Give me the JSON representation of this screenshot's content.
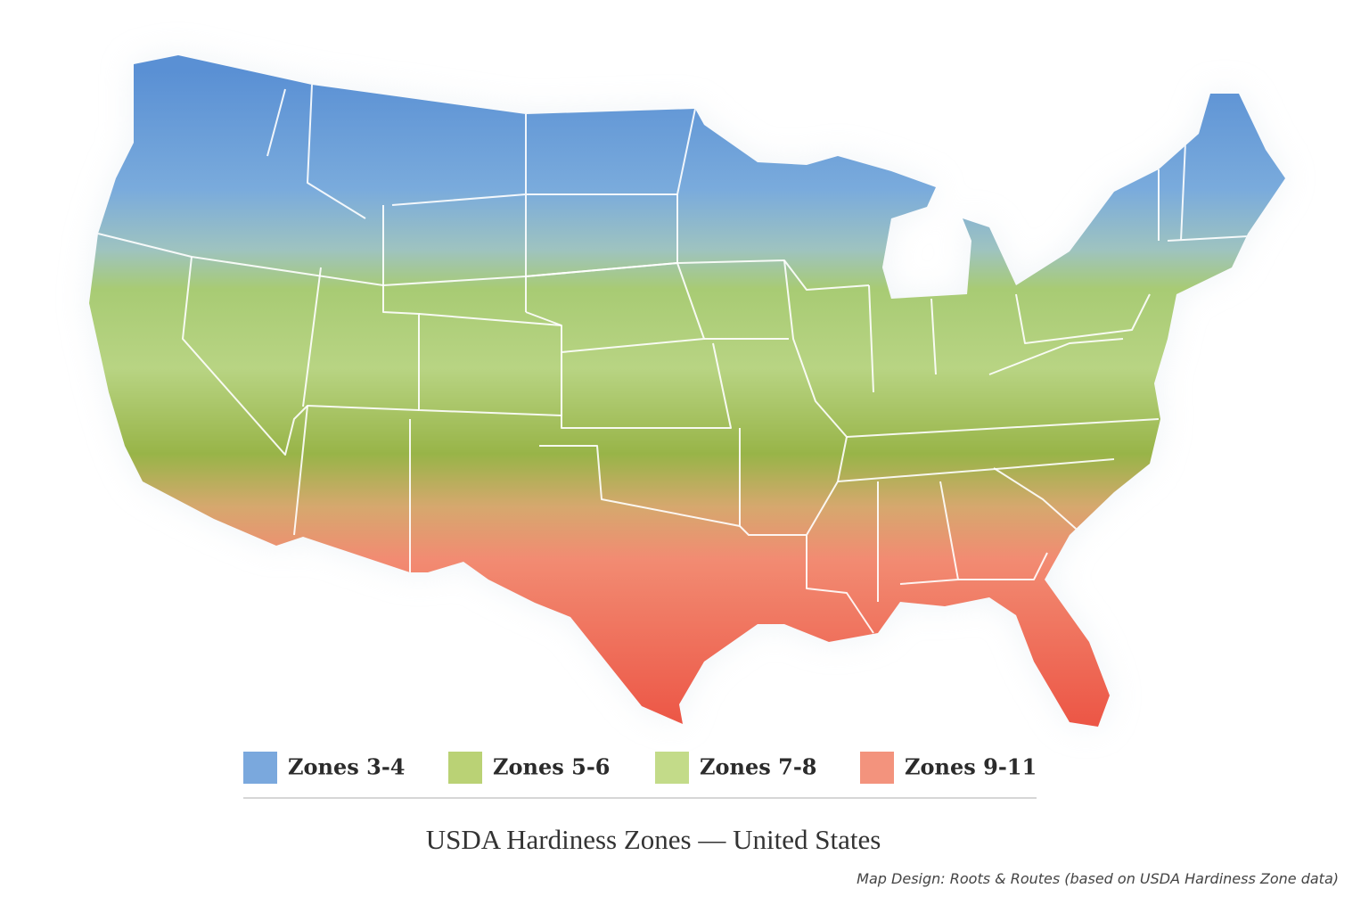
{
  "map": {
    "legend": [
      {
        "label": "Zones 3-4",
        "color": "#6b9ed9"
      },
      {
        "label": "Zones 5-6",
        "color": "#b3cd66"
      },
      {
        "label": "Zones 7-8",
        "color": "#bcd77c"
      },
      {
        "label": "Zones 9-11",
        "color": "#f2876f"
      }
    ],
    "title": "USDA Hardiness Zones — United States",
    "credit": "Map Design: Roots & Routes (based on USDA Hardiness Zone data)"
  }
}
